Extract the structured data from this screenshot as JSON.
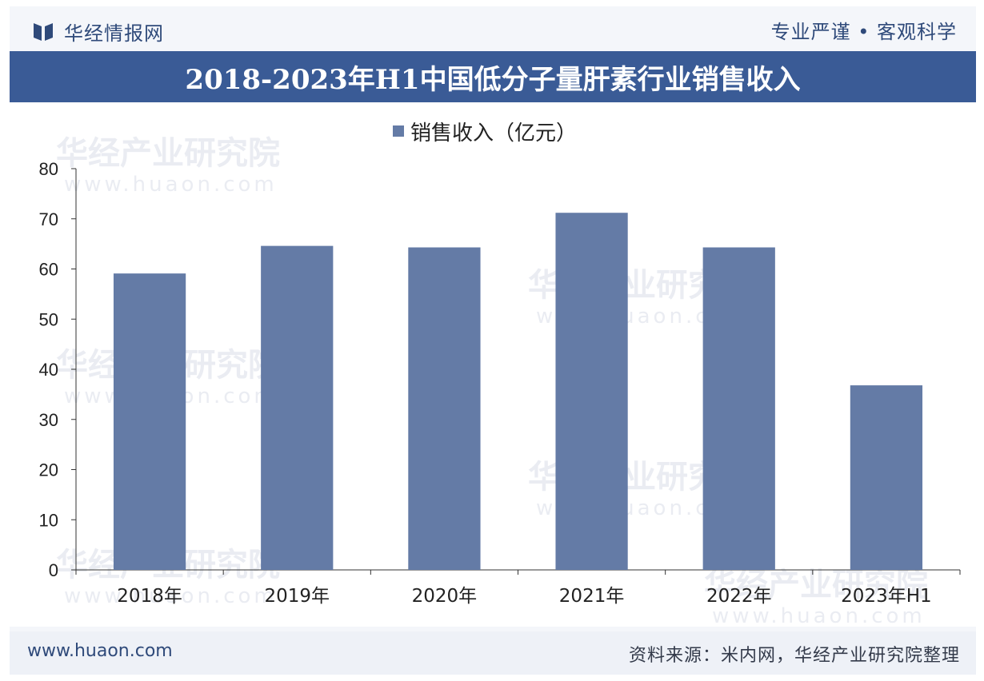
{
  "brand": {
    "name": "华经情报网",
    "slogan": "专业严谨 • 客观科学"
  },
  "header": {
    "title": "2018-2023年H1中国低分子量肝素行业销售收入"
  },
  "watermark": {
    "text": "华经产业研究院",
    "url": "www.huaon.com"
  },
  "footer": {
    "url": "www.huaon.com",
    "source": "资料来源：米内网，华经产业研究院整理"
  },
  "colors": {
    "bar": "#647ba6",
    "title_bar": "#3a5b96",
    "brand": "#2f4a7a"
  },
  "chart_data": {
    "type": "bar",
    "categories": [
      "2018年",
      "2019年",
      "2020年",
      "2021年",
      "2022年",
      "2023年H1"
    ],
    "series": [
      {
        "name": "销售收入（亿元）",
        "values": [
          59.1,
          64.6,
          64.3,
          71.2,
          64.3,
          36.8
        ]
      }
    ],
    "ylim": [
      0,
      80
    ],
    "yticks": [
      0,
      10,
      20,
      30,
      40,
      50,
      60,
      70,
      80
    ],
    "legend": "top-center",
    "grid": false
  }
}
